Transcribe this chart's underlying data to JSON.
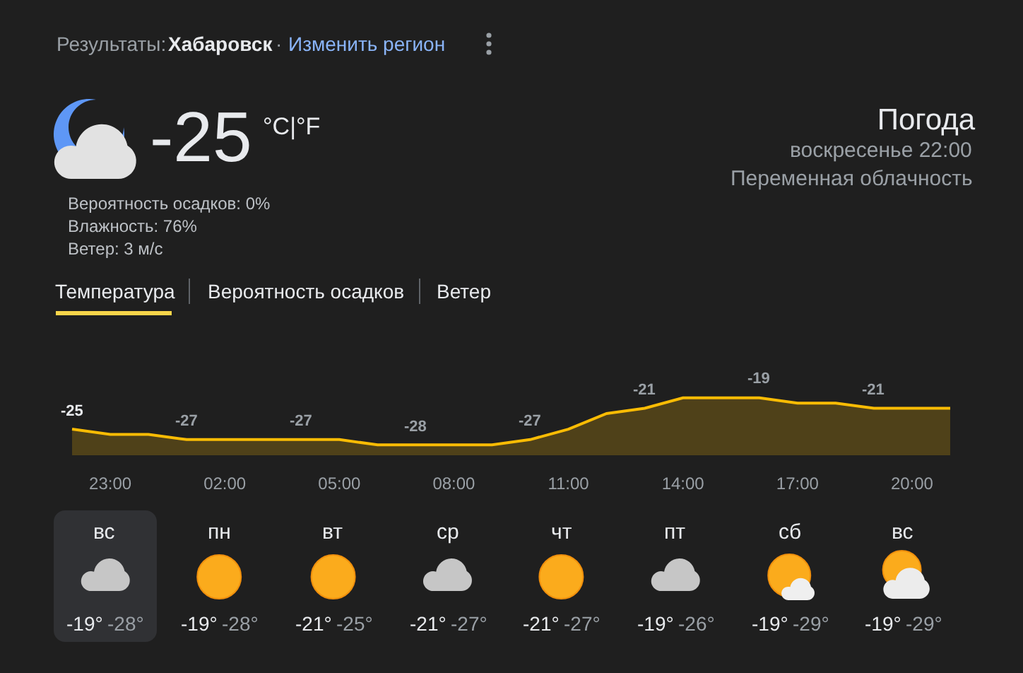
{
  "chart_data": {
    "type": "area",
    "title": "Погода",
    "subtitle": "воскресенье 22:00",
    "categories": [
      null,
      "23:00",
      null,
      null,
      "02:00",
      null,
      null,
      "05:00",
      null,
      null,
      "08:00",
      null,
      null,
      "11:00",
      null,
      null,
      "14:00",
      null,
      null,
      "17:00",
      null,
      null,
      "20:00",
      null
    ],
    "tick_labels": "x",
    "series": [
      {
        "color": "#fbbc04",
        "values": [
          -25,
          -26,
          -26,
          -27,
          -27,
          -27,
          -27,
          -27,
          -28,
          -28,
          -28,
          -28,
          -27,
          -25,
          -22,
          -21,
          -19,
          -19,
          -19,
          -20,
          -20,
          -21,
          -21,
          -21
        ],
        "value_labels": [
          "-25",
          null,
          null,
          "-27",
          null,
          null,
          "-27",
          null,
          null,
          "-28",
          null,
          null,
          "-27",
          null,
          null,
          "-21",
          null,
          null,
          "-19",
          null,
          null,
          "-21",
          null,
          null
        ]
      }
    ],
    "annotations": [
      "Результаты:",
      "Хабаровск",
      "·",
      "Изменить регион",
      "-25",
      "°C|°F",
      "Вероятность осадков: 0%",
      "Влажность: 76%",
      "Ветер: 3 м/с",
      "Переменная облачность",
      "Температура",
      "Вероятность осадков",
      "Ветер",
      "вс",
      "пн",
      "вт",
      "ср",
      "чт",
      "пт",
      "сб",
      "вс",
      "-19°",
      "-28°",
      "-19°",
      "-28°",
      "-21°",
      "-25°",
      "-21°",
      "-27°",
      "-21°",
      "-27°",
      "-19°",
      "-26°",
      "-19°",
      "-29°",
      "-19°",
      "-29°"
    ]
  }
}
